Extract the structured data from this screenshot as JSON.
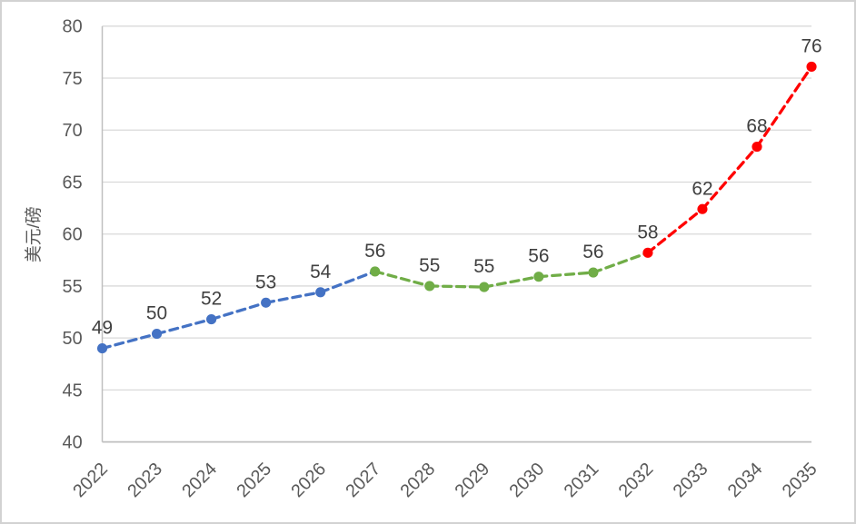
{
  "chart_data": {
    "type": "line",
    "title": "",
    "xlabel": "",
    "ylabel": "美元/磅",
    "categories": [
      "2022",
      "2023",
      "2024",
      "2025",
      "2026",
      "2027",
      "2028",
      "2029",
      "2030",
      "2031",
      "2032",
      "2033",
      "2034",
      "2035"
    ],
    "values": [
      49.0,
      50.4,
      51.8,
      53.4,
      54.4,
      56.4,
      55.0,
      54.9,
      55.9,
      56.3,
      58.2,
      62.4,
      68.4,
      76.1
    ],
    "point_labels": [
      "49",
      "50",
      "52",
      "53",
      "54",
      "56",
      "55",
      "55",
      "56",
      "56",
      "58",
      "62",
      "68",
      "76"
    ],
    "ylim": [
      40,
      80
    ],
    "ytick_step": 5,
    "grid": true,
    "legend": "none",
    "line_style": "dashed",
    "marker": "circle",
    "segments": [
      {
        "name": "segment-blue",
        "color": "#4472C4",
        "from": 0,
        "to": 5
      },
      {
        "name": "segment-green",
        "color": "#70AD47",
        "from": 5,
        "to": 10
      },
      {
        "name": "segment-red",
        "color": "#FF0000",
        "from": 10,
        "to": 13
      }
    ]
  },
  "styles": {
    "background": "#FFFFFF",
    "frame_border": "#D2D2D2",
    "grid_color": "#D9D9D9",
    "axis_color": "#BFBFBF",
    "tick_label_color": "#595959",
    "data_label_color": "#404040"
  }
}
